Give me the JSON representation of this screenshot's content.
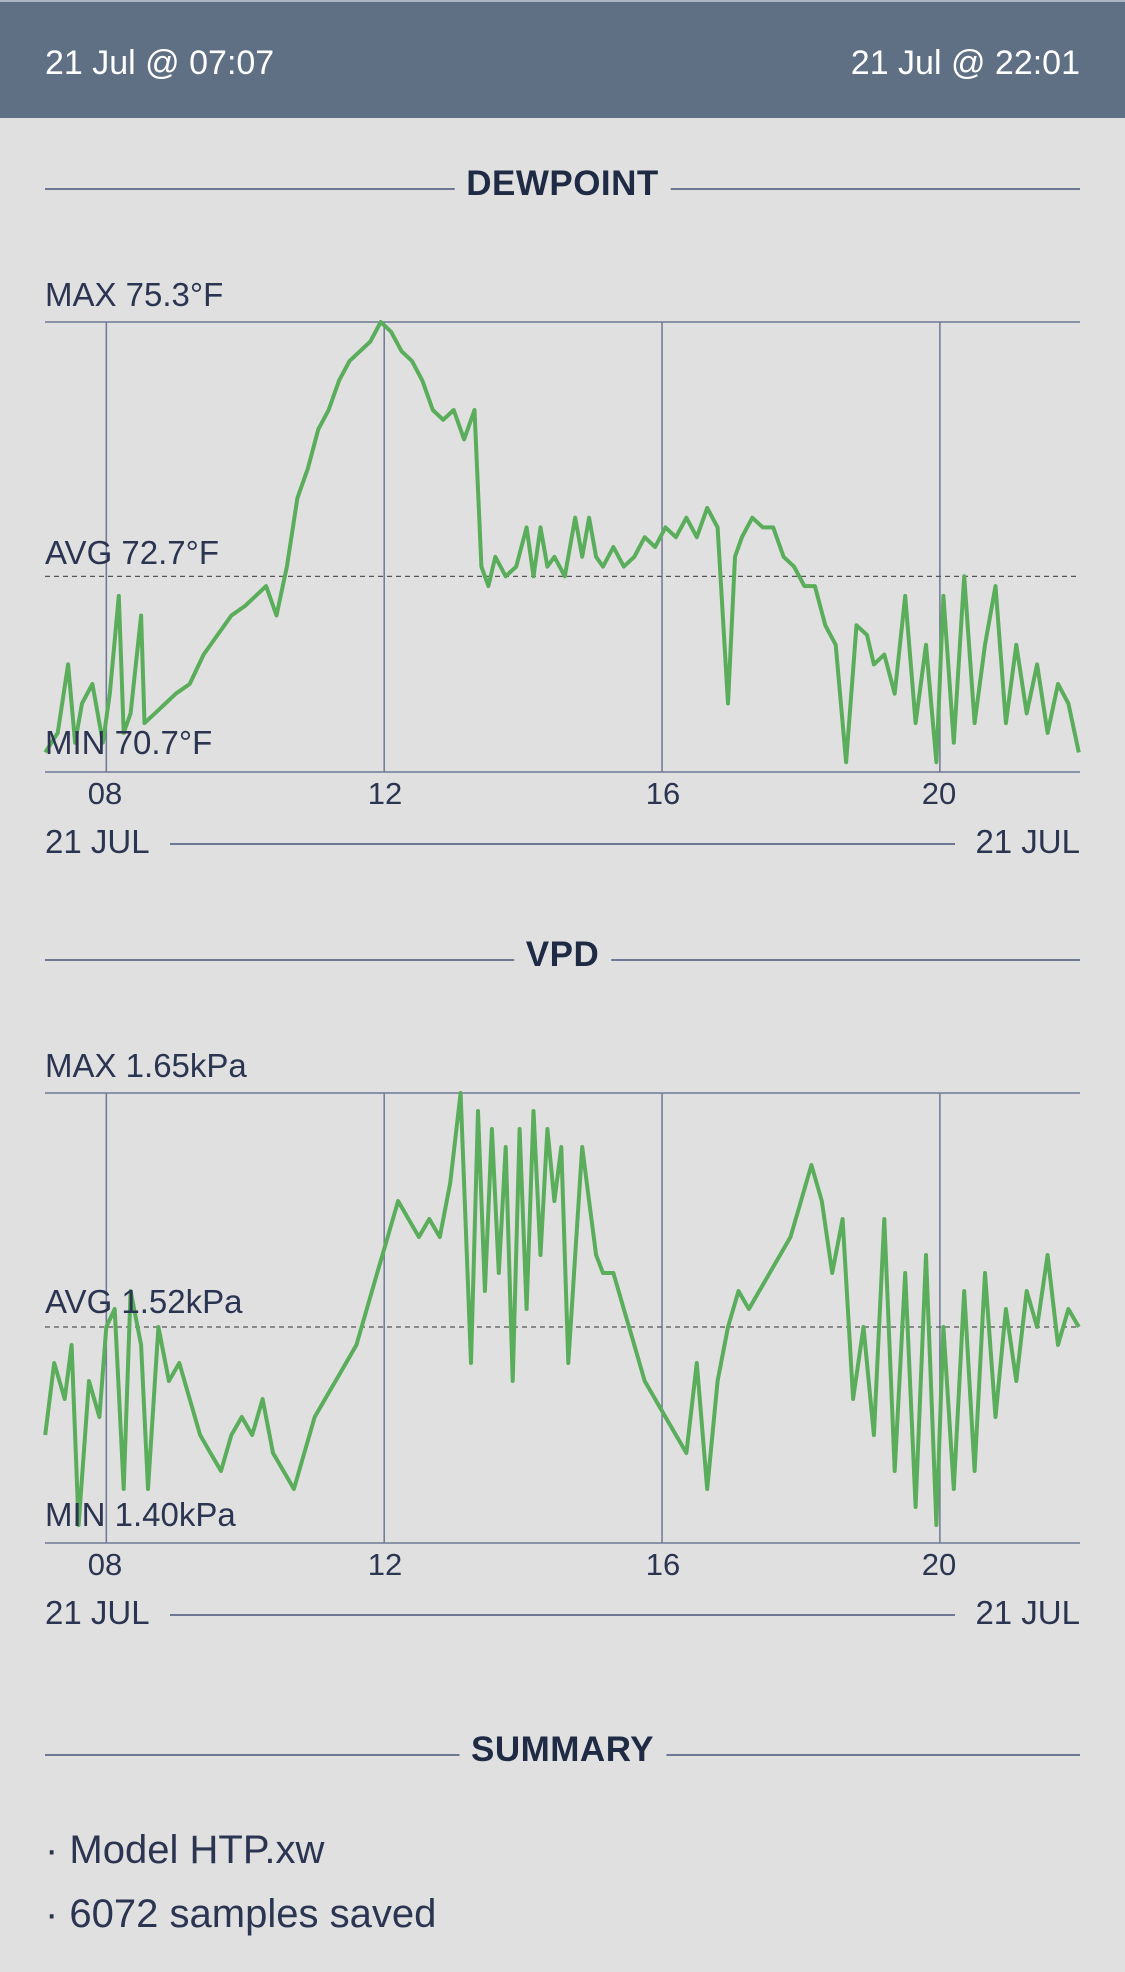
{
  "header": {
    "start": "21 Jul @ 07:07",
    "end": "21 Jul @ 22:01"
  },
  "dewpoint": {
    "title": "DEWPOINT",
    "max_label": "MAX 75.3°F",
    "avg_label": "AVG 72.7°F",
    "min_label": "MIN 70.7°F",
    "x_ticks": [
      "08",
      "12",
      "16",
      "20"
    ],
    "date_start": "21 JUL",
    "date_end": "21 JUL"
  },
  "vpd": {
    "title": "VPD",
    "max_label": "MAX 1.65kPa",
    "avg_label": "AVG 1.52kPa",
    "min_label": "MIN 1.40kPa",
    "x_ticks": [
      "08",
      "12",
      "16",
      "20"
    ],
    "date_start": "21 JUL",
    "date_end": "21 JUL"
  },
  "summary": {
    "title": "SUMMARY",
    "items": [
      "· Model HTP.xw",
      "· 6072 samples saved"
    ]
  },
  "colors": {
    "line": "#5aad5a",
    "axis": "#6e7894",
    "header_bg": "#5f6f84"
  },
  "chart_data": [
    {
      "type": "line",
      "title": "DEWPOINT",
      "xlabel": "",
      "ylabel": "",
      "xlim": [
        7.117,
        22.017
      ],
      "ylim": [
        70.7,
        75.3
      ],
      "avg": 72.7,
      "x_ticks": [
        8,
        12,
        16,
        20
      ],
      "grid": true,
      "series": [
        {
          "x": [
            7.12,
            7.3,
            7.45,
            7.55,
            7.65,
            7.8,
            7.95,
            8.05,
            8.18,
            8.25,
            8.35,
            8.5,
            8.55,
            8.7,
            8.85,
            9.0,
            9.2,
            9.4,
            9.6,
            9.8,
            10.0,
            10.15,
            10.3,
            10.45,
            10.6,
            10.75,
            10.9,
            11.05,
            11.2,
            11.35,
            11.5,
            11.65,
            11.8,
            11.95,
            12.1,
            12.25,
            12.4,
            12.55,
            12.7,
            12.85,
            13.0,
            13.15,
            13.3,
            13.4,
            13.5,
            13.6,
            13.75,
            13.9,
            14.05,
            14.15,
            14.25,
            14.35,
            14.45,
            14.6,
            14.75,
            14.85,
            14.95,
            15.05,
            15.15,
            15.3,
            15.45,
            15.6,
            15.75,
            15.9,
            16.05,
            16.2,
            16.35,
            16.5,
            16.65,
            16.8,
            16.95,
            17.05,
            17.15,
            17.3,
            17.45,
            17.6,
            17.75,
            17.9,
            18.05,
            18.2,
            18.35,
            18.5,
            18.65,
            18.8,
            18.95,
            19.05,
            19.2,
            19.35,
            19.5,
            19.65,
            19.8,
            19.95,
            20.05,
            20.2,
            20.35,
            20.5,
            20.65,
            20.8,
            20.95,
            21.1,
            21.25,
            21.4,
            21.55,
            21.7,
            21.85,
            22.0
          ],
          "y": [
            70.9,
            71.1,
            71.8,
            71.0,
            71.4,
            71.6,
            71.0,
            71.5,
            72.5,
            71.1,
            71.3,
            72.3,
            71.2,
            71.3,
            71.4,
            71.5,
            71.6,
            71.9,
            72.1,
            72.3,
            72.4,
            72.5,
            72.6,
            72.3,
            72.8,
            73.5,
            73.8,
            74.2,
            74.4,
            74.7,
            74.9,
            75.0,
            75.1,
            75.3,
            75.2,
            75.0,
            74.9,
            74.7,
            74.4,
            74.3,
            74.4,
            74.1,
            74.4,
            72.8,
            72.6,
            72.9,
            72.7,
            72.8,
            73.2,
            72.7,
            73.2,
            72.8,
            72.9,
            72.7,
            73.3,
            72.9,
            73.3,
            72.9,
            72.8,
            73.0,
            72.8,
            72.9,
            73.1,
            73.0,
            73.2,
            73.1,
            73.3,
            73.1,
            73.4,
            73.2,
            71.4,
            72.9,
            73.1,
            73.3,
            73.2,
            73.2,
            72.9,
            72.8,
            72.6,
            72.6,
            72.2,
            72.0,
            70.8,
            72.2,
            72.1,
            71.8,
            71.9,
            71.5,
            72.5,
            71.2,
            72.0,
            70.8,
            72.5,
            71.0,
            72.7,
            71.2,
            72.0,
            72.6,
            71.2,
            72.0,
            71.3,
            71.8,
            71.1,
            71.6,
            71.4,
            70.9
          ]
        }
      ]
    },
    {
      "type": "line",
      "title": "VPD",
      "xlabel": "",
      "ylabel": "",
      "xlim": [
        7.117,
        22.017
      ],
      "ylim": [
        1.4,
        1.65
      ],
      "avg": 1.52,
      "x_ticks": [
        8,
        12,
        16,
        20
      ],
      "grid": true,
      "series": [
        {
          "x": [
            7.12,
            7.25,
            7.4,
            7.5,
            7.6,
            7.75,
            7.9,
            8.0,
            8.12,
            8.25,
            8.35,
            8.5,
            8.6,
            8.75,
            8.9,
            9.05,
            9.2,
            9.35,
            9.5,
            9.65,
            9.8,
            9.95,
            10.1,
            10.25,
            10.4,
            10.55,
            10.7,
            10.85,
            11.0,
            11.15,
            11.3,
            11.45,
            11.6,
            11.75,
            11.9,
            12.05,
            12.2,
            12.35,
            12.5,
            12.65,
            12.8,
            12.95,
            13.1,
            13.25,
            13.35,
            13.45,
            13.55,
            13.65,
            13.75,
            13.85,
            13.95,
            14.05,
            14.15,
            14.25,
            14.35,
            14.45,
            14.55,
            14.65,
            14.75,
            14.85,
            14.95,
            15.05,
            15.15,
            15.3,
            15.45,
            15.6,
            15.75,
            15.9,
            16.05,
            16.2,
            16.35,
            16.5,
            16.65,
            16.8,
            16.95,
            17.1,
            17.25,
            17.4,
            17.55,
            17.7,
            17.85,
            18.0,
            18.15,
            18.3,
            18.45,
            18.6,
            18.75,
            18.9,
            19.05,
            19.2,
            19.35,
            19.5,
            19.65,
            19.8,
            19.95,
            20.05,
            20.2,
            20.35,
            20.5,
            20.65,
            20.8,
            20.95,
            21.1,
            21.25,
            21.4,
            21.55,
            21.7,
            21.85,
            22.0
          ],
          "y": [
            1.46,
            1.5,
            1.48,
            1.51,
            1.41,
            1.49,
            1.47,
            1.52,
            1.53,
            1.43,
            1.54,
            1.51,
            1.43,
            1.52,
            1.49,
            1.5,
            1.48,
            1.46,
            1.45,
            1.44,
            1.46,
            1.47,
            1.46,
            1.48,
            1.45,
            1.44,
            1.43,
            1.45,
            1.47,
            1.48,
            1.49,
            1.5,
            1.51,
            1.53,
            1.55,
            1.57,
            1.59,
            1.58,
            1.57,
            1.58,
            1.57,
            1.6,
            1.65,
            1.5,
            1.64,
            1.54,
            1.63,
            1.55,
            1.62,
            1.49,
            1.63,
            1.53,
            1.64,
            1.56,
            1.63,
            1.59,
            1.62,
            1.5,
            1.56,
            1.62,
            1.59,
            1.56,
            1.55,
            1.55,
            1.53,
            1.51,
            1.49,
            1.48,
            1.47,
            1.46,
            1.45,
            1.5,
            1.43,
            1.49,
            1.52,
            1.54,
            1.53,
            1.54,
            1.55,
            1.56,
            1.57,
            1.59,
            1.61,
            1.59,
            1.55,
            1.58,
            1.48,
            1.52,
            1.46,
            1.58,
            1.44,
            1.55,
            1.42,
            1.56,
            1.41,
            1.52,
            1.43,
            1.54,
            1.44,
            1.55,
            1.47,
            1.53,
            1.49,
            1.54,
            1.52,
            1.56,
            1.51,
            1.53,
            1.52
          ]
        }
      ]
    }
  ]
}
